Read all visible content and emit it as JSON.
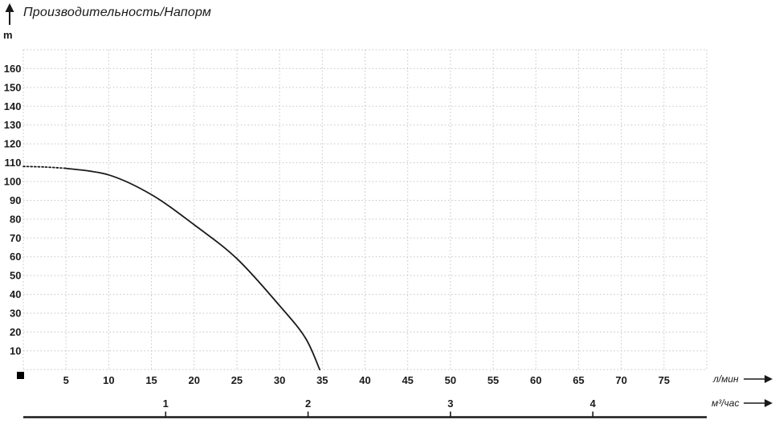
{
  "title": "Производительность/Напорм",
  "y_axis": {
    "unit": "m",
    "min": 0,
    "max": 170,
    "gridline_step": 10,
    "labeled_ticks": [
      10,
      20,
      30,
      40,
      50,
      60,
      70,
      80,
      90,
      100,
      110,
      120,
      130,
      140,
      150,
      160
    ]
  },
  "x_axis": {
    "unit": "л/мин",
    "min": 0,
    "max": 80,
    "gridline_step": 5,
    "labeled_ticks": [
      5,
      10,
      15,
      20,
      25,
      30,
      35,
      40,
      45,
      50,
      55,
      60,
      65,
      70,
      75
    ]
  },
  "x_axis_secondary": {
    "unit": "м³/час",
    "labeled_ticks": [
      1,
      2,
      3,
      4
    ],
    "liters_per_unit": 16.6667
  },
  "colors": {
    "text": "#1a1a1a",
    "gridline": "#c7c7c7",
    "curve": "#1a1a1a",
    "axis_line": "#1a1a1a"
  },
  "origin_marker": "black-square",
  "chart_data": {
    "type": "line",
    "title": "Производительность/Напорм",
    "xlabel": "л/мин",
    "x2label": "м³/час",
    "ylabel": "m",
    "xlim": [
      0,
      80
    ],
    "ylim": [
      0,
      170
    ],
    "grid": true,
    "legend_position": "none",
    "series": [
      {
        "name": "head-flow-curve",
        "dotted_until_x": 5,
        "points": [
          [
            0,
            108
          ],
          [
            2.5,
            107.7
          ],
          [
            5,
            107
          ],
          [
            10,
            103.5
          ],
          [
            15,
            93
          ],
          [
            20,
            77
          ],
          [
            25,
            59
          ],
          [
            30,
            34
          ],
          [
            33,
            17
          ],
          [
            34.7,
            0
          ]
        ]
      }
    ]
  }
}
